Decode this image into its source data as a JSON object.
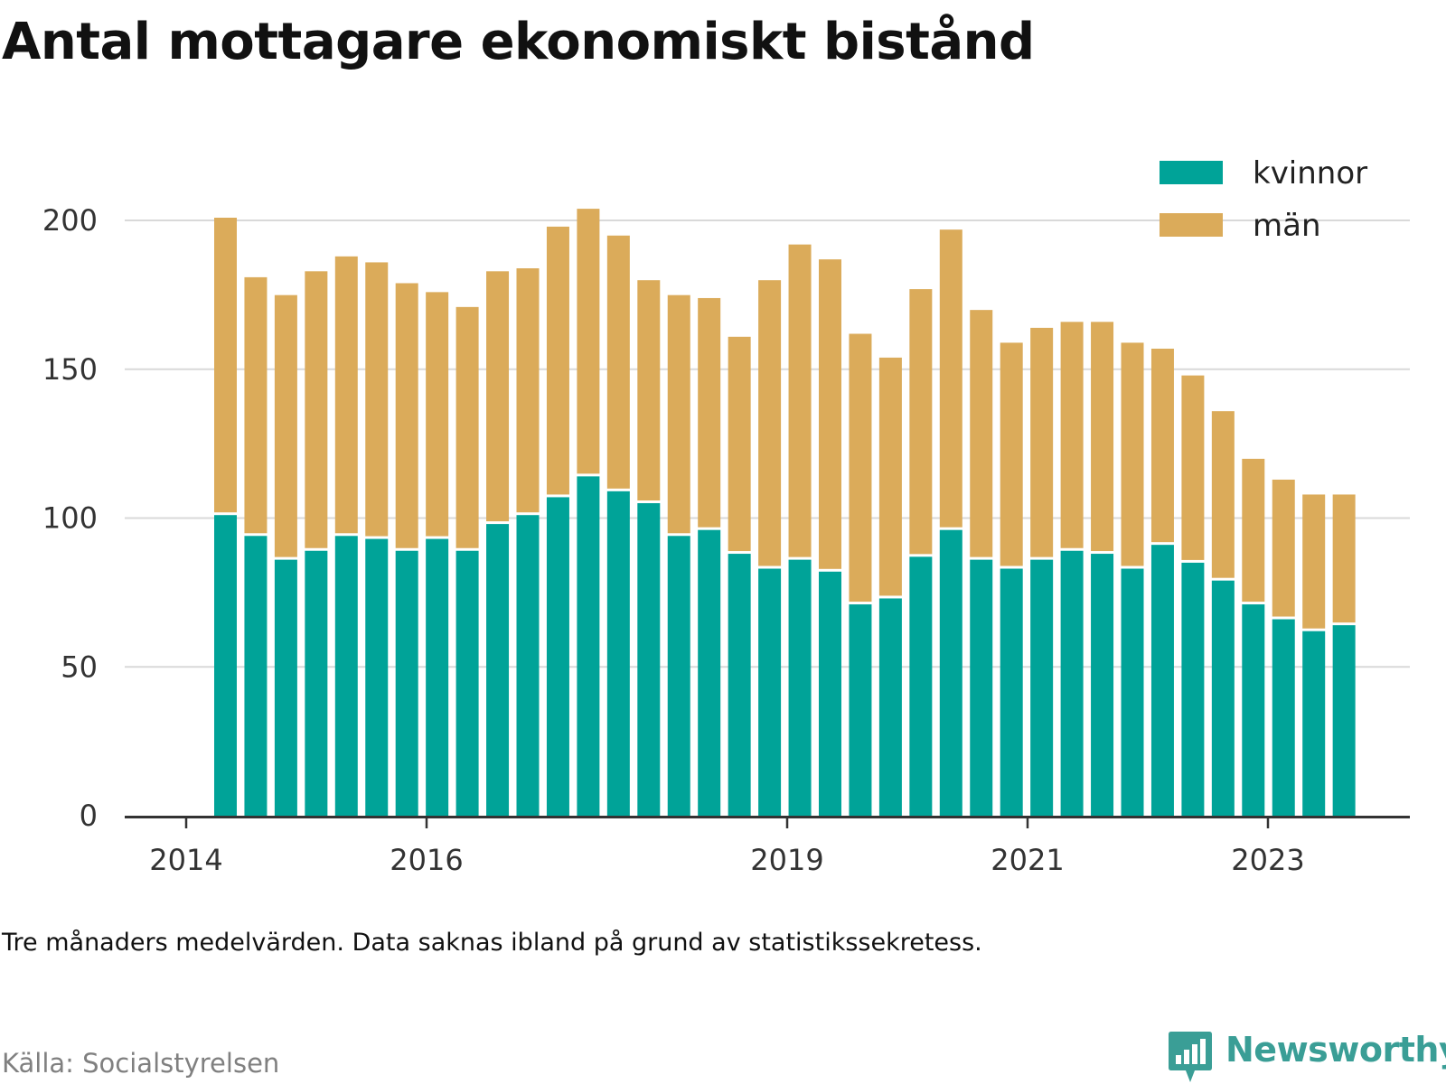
{
  "title": "Antal mottagare ekonomiskt bistånd",
  "note": "Tre månaders medelvärden. Data saknas ibland på grund av statistikssekretess.",
  "source": "Källa: Socialstyrelsen",
  "brand": {
    "name": "Newsworthy",
    "logo_icon": "bar-chart-speech-bubble-icon"
  },
  "colors": {
    "kvinnor": "#00a398",
    "man": "#dbab5a",
    "grid": "#d9d9d9",
    "axis": "#333333",
    "brand": "#3a9e96"
  },
  "chart_data": {
    "type": "bar",
    "stacked": true,
    "x_tick_labels": [
      "2014",
      "2016",
      "2019",
      "2021",
      "2023"
    ],
    "y_ticks": [
      0,
      50,
      100,
      150,
      200
    ],
    "ylim": [
      0,
      215
    ],
    "grid": "horizontal",
    "legend_position": "top-right",
    "categories": [
      "2014-Q2",
      "2014-Q3",
      "2014-Q4",
      "2015-Q1",
      "2015-Q2",
      "2015-Q3",
      "2015-Q4",
      "2016-Q1",
      "2016-Q2",
      "2016-Q3",
      "2016-Q4",
      "2017-Q1",
      "2017-Q2",
      "2017-Q3",
      "2017-Q4",
      "2018-Q1",
      "2018-Q2",
      "2018-Q3",
      "2018-Q4",
      "2019-Q1",
      "2019-Q2",
      "2019-Q3",
      "2019-Q4",
      "2020-Q1",
      "2020-Q2",
      "2020-Q3",
      "2020-Q4",
      "2021-Q1",
      "2021-Q2",
      "2021-Q3",
      "2021-Q4",
      "2022-Q1",
      "2022-Q2",
      "2022-Q3",
      "2022-Q4",
      "2023-Q1",
      "2023-Q2",
      "2023-Q3"
    ],
    "series": [
      {
        "name": "kvinnor",
        "values": [
          101,
          94,
          86,
          89,
          94,
          93,
          89,
          93,
          89,
          98,
          101,
          107,
          114,
          109,
          105,
          94,
          96,
          88,
          83,
          86,
          82,
          71,
          73,
          87,
          96,
          86,
          83,
          86,
          89,
          88,
          83,
          91,
          85,
          79,
          71,
          66,
          62,
          64
        ]
      },
      {
        "name": "män",
        "values": [
          99,
          86,
          88,
          93,
          93,
          92,
          89,
          82,
          81,
          84,
          82,
          90,
          89,
          85,
          74,
          80,
          77,
          72,
          96,
          105,
          104,
          90,
          80,
          89,
          100,
          83,
          75,
          77,
          76,
          77,
          75,
          65,
          62,
          56,
          48,
          46,
          45,
          43
        ]
      }
    ]
  }
}
